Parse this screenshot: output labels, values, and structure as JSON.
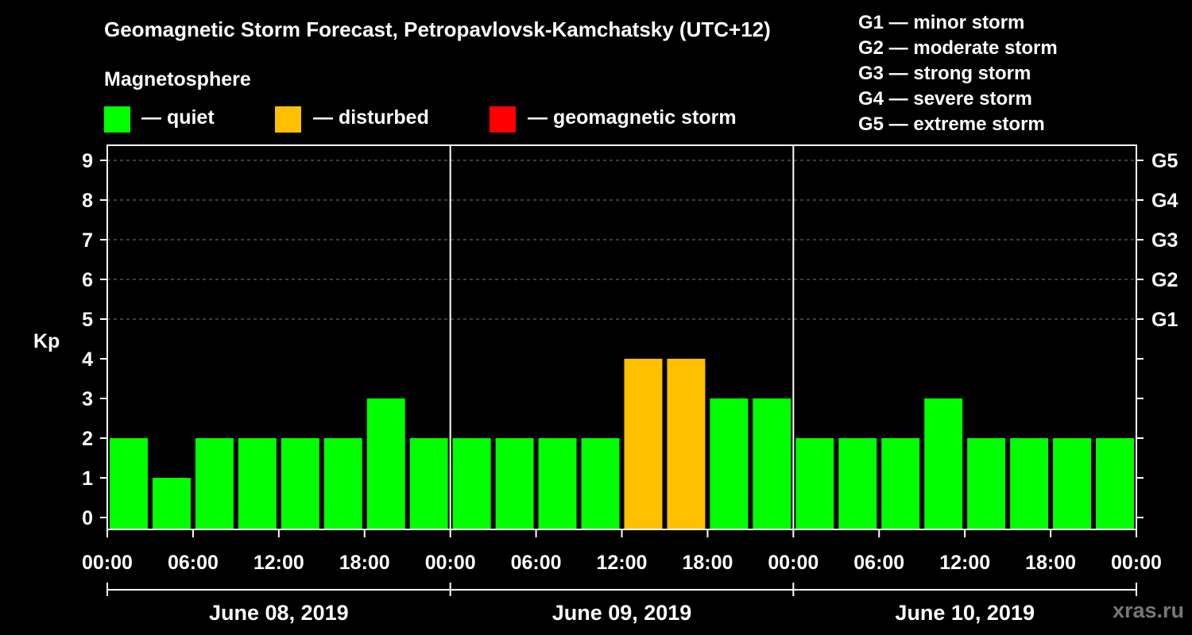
{
  "title": "Geomagnetic Storm Forecast, Petropavlovsk-Kamchatsky (UTC+12)",
  "legend": {
    "title": "Magnetosphere",
    "items": [
      {
        "label": "— quiet",
        "color": "#00ff00"
      },
      {
        "label": "— disturbed",
        "color": "#ffc000"
      },
      {
        "label": "— geomagnetic storm",
        "color": "#ff0000"
      }
    ]
  },
  "storm_scale": [
    "G1 — minor storm",
    "G2 — moderate storm",
    "G3 — strong storm",
    "G4 — severe storm",
    "G5 — extreme storm"
  ],
  "watermark": "xras.ru",
  "chart_data": {
    "type": "bar",
    "ylabel": "Kp",
    "ylim": [
      0,
      9
    ],
    "yticks": [
      0,
      1,
      2,
      3,
      4,
      5,
      6,
      7,
      8,
      9
    ],
    "right_axis_labels": [
      {
        "kp": 5,
        "label": "G1"
      },
      {
        "kp": 6,
        "label": "G2"
      },
      {
        "kp": 7,
        "label": "G3"
      },
      {
        "kp": 8,
        "label": "G4"
      },
      {
        "kp": 9,
        "label": "G5"
      }
    ],
    "grid": "horizontal dashed at Kp 5–9",
    "xtick_labels": [
      "00:00",
      "06:00",
      "12:00",
      "18:00",
      "00:00",
      "06:00",
      "12:00",
      "18:00",
      "00:00",
      "06:00",
      "12:00",
      "18:00",
      "00:00"
    ],
    "days": [
      "June 08, 2019",
      "June 09, 2019",
      "June 10, 2019"
    ],
    "values": [
      2,
      1,
      2,
      2,
      2,
      2,
      3,
      2,
      2,
      2,
      2,
      2,
      4,
      4,
      3,
      3,
      2,
      2,
      2,
      3,
      2,
      2,
      2,
      2
    ],
    "colors": {
      "quiet": "#00ff00",
      "disturbed": "#ffc000",
      "storm": "#ff0000"
    }
  }
}
